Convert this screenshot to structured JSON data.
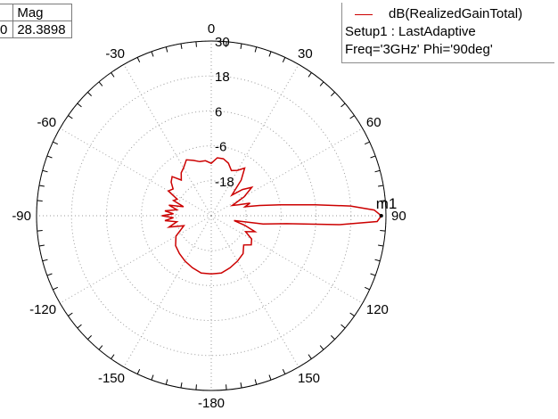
{
  "marker_table": {
    "header": "Mag",
    "row_left": "0",
    "row_value": "28.3898"
  },
  "legend": {
    "series": "dB(RealizedGainTotal)",
    "setup": "Setup1 : LastAdaptive",
    "sweep": "Freq='3GHz' Phi='90deg'"
  },
  "colors": {
    "trace": "#cc0000",
    "grid": "#9a9a9a",
    "outer_circle": "#000000"
  },
  "chart_data": {
    "type": "polar-line",
    "angle_labels": [
      "0",
      "30",
      "60",
      "90",
      "120",
      "150",
      "-180",
      "-150",
      "-120",
      "-90",
      "-60",
      "-30"
    ],
    "angle_values": [
      0,
      30,
      60,
      90,
      120,
      150,
      180,
      -150,
      -120,
      -90,
      -60,
      -30
    ],
    "radial_ticks": [
      30,
      18,
      6,
      -6,
      -18
    ],
    "radial_tick_labels": [
      "30",
      "18",
      "6",
      "-6",
      "-18"
    ],
    "rlim": [
      -30,
      30
    ],
    "series": [
      {
        "name": "dB(RealizedGainTotal)",
        "theta": [
          0,
          6,
          12,
          18,
          24,
          30,
          35,
          40,
          45,
          50,
          55,
          60,
          64,
          68,
          72,
          75,
          78,
          81,
          84,
          86,
          88,
          90,
          92,
          94,
          96,
          99,
          102,
          106,
          110,
          115,
          120,
          126,
          132,
          140,
          150,
          160,
          170,
          180,
          190,
          200,
          210,
          220,
          230,
          240,
          250,
          255,
          260,
          264,
          267,
          270,
          273,
          276,
          280,
          284,
          288,
          292,
          296,
          300,
          305,
          310,
          315,
          320,
          325,
          330,
          336,
          342,
          348,
          354,
          360
        ],
        "values": [
          -12,
          -10,
          -10,
          -11,
          -13,
          -12,
          -10,
          -14,
          -20,
          -16,
          -13,
          -17,
          -22,
          -20,
          -16,
          -18,
          -13,
          -6,
          6,
          18,
          26,
          28.4,
          27,
          14,
          -4,
          -12,
          -22,
          -18,
          -14,
          -17,
          -14,
          -13,
          -15,
          -13,
          -12,
          -11,
          -10,
          -10,
          -10,
          -11,
          -12,
          -13,
          -14,
          -16,
          -20,
          -15,
          -18,
          -14,
          -17,
          -13,
          -17,
          -14,
          -18,
          -15,
          -20,
          -16,
          -17,
          -13,
          -14,
          -12,
          -11,
          -14,
          -12,
          -11,
          -9,
          -10,
          -11,
          -11,
          -12
        ]
      }
    ],
    "marker": {
      "label": "m1",
      "theta": 90,
      "value": 28.3898
    }
  }
}
